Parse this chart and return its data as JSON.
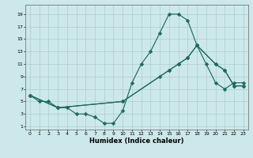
{
  "xlabel": "Humidex (Indice chaleur)",
  "bg_color": "#cde8ea",
  "grid_color": "#aacdd1",
  "line_color": "#1f6b5e",
  "xlim": [
    -0.5,
    23.5
  ],
  "ylim": [
    0.5,
    20.5
  ],
  "xticks": [
    0,
    1,
    2,
    3,
    4,
    5,
    6,
    7,
    8,
    9,
    10,
    11,
    12,
    13,
    14,
    15,
    16,
    17,
    18,
    19,
    20,
    21,
    22,
    23
  ],
  "yticks": [
    1,
    3,
    5,
    7,
    9,
    11,
    13,
    15,
    17,
    19
  ],
  "line1_x": [
    0,
    1,
    2,
    3,
    4,
    5,
    6,
    7,
    8,
    9,
    10,
    11,
    12,
    13,
    14,
    15,
    16,
    17,
    18,
    19,
    20,
    21,
    22,
    23
  ],
  "line1_y": [
    6,
    5,
    5,
    4,
    4,
    3,
    3,
    2.5,
    1.5,
    1.5,
    3.5,
    8,
    11,
    13,
    16,
    19,
    19,
    18,
    14,
    11,
    8,
    7,
    8,
    8
  ],
  "line2_x": [
    0,
    3,
    10,
    14,
    15,
    16,
    17,
    18,
    20,
    21,
    22,
    23
  ],
  "line2_y": [
    6,
    4,
    5,
    9,
    10,
    11,
    12,
    14,
    11,
    10,
    7.5,
    7.5
  ],
  "line3_x": [
    0,
    3,
    10,
    15,
    16,
    17,
    18,
    20,
    21,
    22,
    23
  ],
  "line3_y": [
    6,
    4,
    5,
    10,
    11,
    12,
    14,
    11,
    10,
    7.5,
    7.5
  ]
}
